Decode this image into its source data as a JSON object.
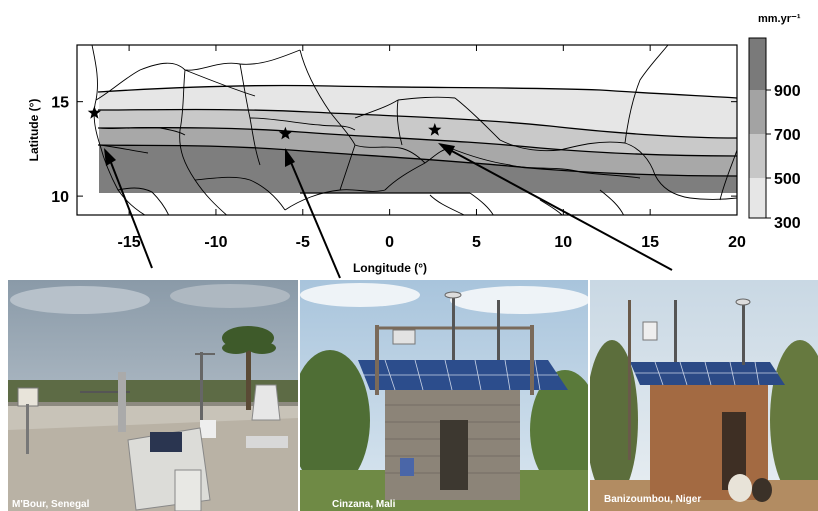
{
  "map": {
    "y_axis_label": "Latitude (°)",
    "x_axis_label": "Longitude (°)",
    "x_ticks": [
      "-15",
      "-10",
      "-5",
      "0",
      "5",
      "10",
      "15",
      "20"
    ],
    "y_ticks": [
      "15",
      "10"
    ],
    "x_range": [
      -18,
      20
    ],
    "y_range": [
      9,
      18
    ],
    "legend": {
      "unit": "mm.yr⁻¹",
      "labels": [
        "900",
        "700",
        "500",
        "300"
      ],
      "colors": [
        "#7a7a7a",
        "#a3a3a3",
        "#c7c7c7",
        "#e6e6e6"
      ]
    },
    "sites": [
      {
        "name": "M'Bour, Senegal",
        "lon": -17.0,
        "lat": 14.4
      },
      {
        "name": "Cinzana, Mali",
        "lon": -6.0,
        "lat": 13.3
      },
      {
        "name": "Banizoumbou, Niger",
        "lon": 2.6,
        "lat": 13.5
      }
    ]
  },
  "photos": [
    {
      "caption": "M'Bour, Senegal"
    },
    {
      "caption": "Cinzana, Mali"
    },
    {
      "caption": "Banizoumbou, Niger"
    }
  ]
}
